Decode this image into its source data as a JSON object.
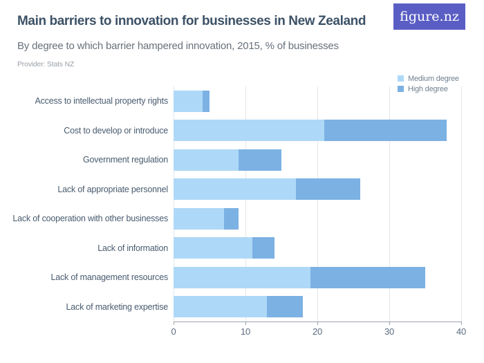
{
  "header": {
    "title": "Main barriers to innovation for businesses in New Zealand",
    "subtitle": "By degree to which barrier hampered innovation, 2015, % of businesses",
    "provider": "Provider: Stats NZ",
    "logo_text": "figure.nz"
  },
  "colors": {
    "medium_degree": "#aed8f7",
    "high_degree": "#7cb1e3",
    "logo_background": "#5a5ec4",
    "title_text": "#3c5166",
    "gridline": "#e4e6e9",
    "axis_line": "#9aa1a9"
  },
  "chart_data": {
    "type": "bar",
    "orientation": "horizontal",
    "stacked": true,
    "title": "Main barriers to innovation for businesses in New Zealand",
    "subtitle": "By degree to which barrier hampered innovation, 2015, % of businesses",
    "xlabel": "% of businesses",
    "ylabel": "",
    "xlim": [
      0,
      40
    ],
    "x_ticks": [
      0,
      10,
      20,
      30,
      40
    ],
    "grid": true,
    "legend_position": "top-right",
    "categories": [
      "Access to intellectual property rights",
      "Cost to develop or introduce",
      "Government regulation",
      "Lack of appropriate personnel",
      "Lack of cooperation with other businesses",
      "Lack of information",
      "Lack of management resources",
      "Lack of marketing expertise"
    ],
    "series": [
      {
        "name": "Medium degree",
        "color": "#aed8f7",
        "values": [
          4,
          21,
          9,
          17,
          7,
          11,
          19,
          13
        ]
      },
      {
        "name": "High degree",
        "color": "#7cb1e3",
        "values": [
          1,
          17,
          6,
          9,
          2,
          3,
          16,
          5
        ]
      }
    ]
  }
}
